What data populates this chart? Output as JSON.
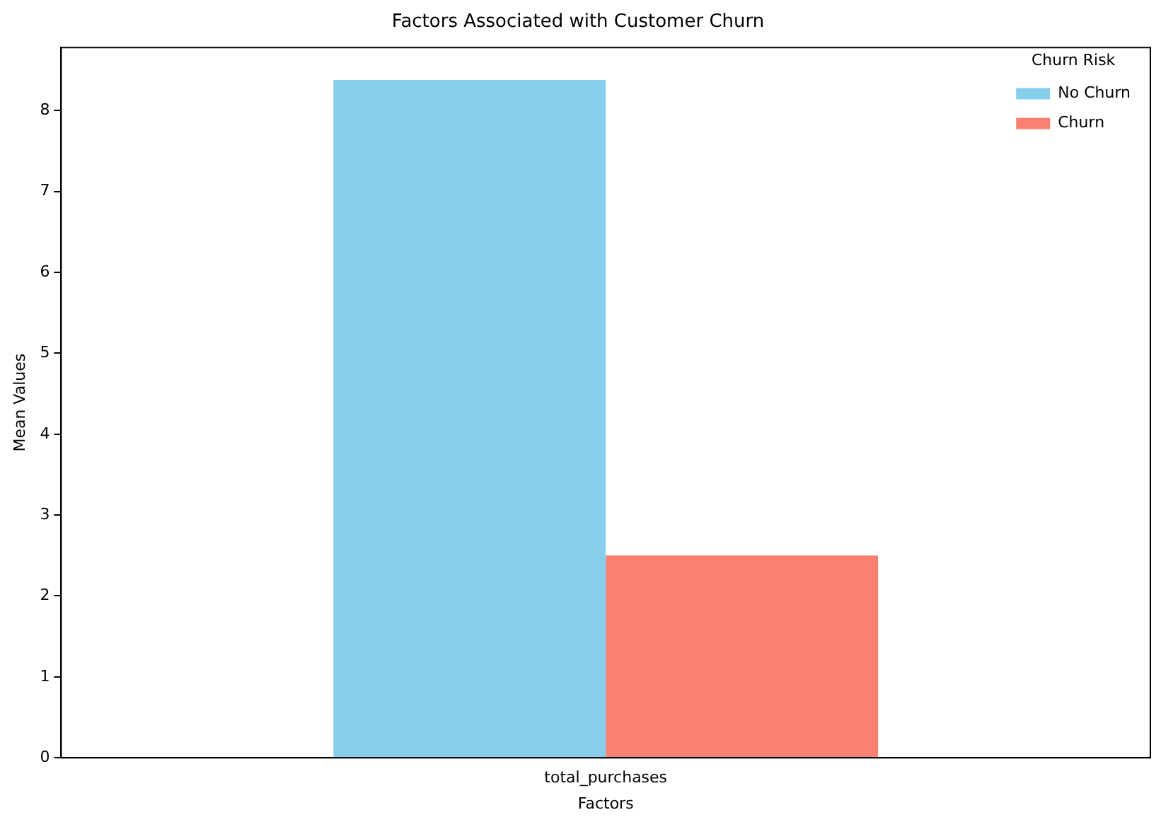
{
  "chart_data": {
    "type": "bar",
    "title": "Factors Associated with Customer Churn",
    "xlabel": "Factors",
    "ylabel": "Mean Values",
    "legend_title": "Churn Risk",
    "categories": [
      "total_purchases"
    ],
    "series": [
      {
        "name": "No Churn",
        "color": "#87ceeb",
        "values": [
          8.38
        ]
      },
      {
        "name": "Churn",
        "color": "#fa8072",
        "values": [
          2.5
        ]
      }
    ],
    "ylim": [
      0,
      8.78
    ],
    "yticks": [
      0,
      1,
      2,
      3,
      4,
      5,
      6,
      7,
      8
    ],
    "grid": false,
    "legend": "top right"
  }
}
